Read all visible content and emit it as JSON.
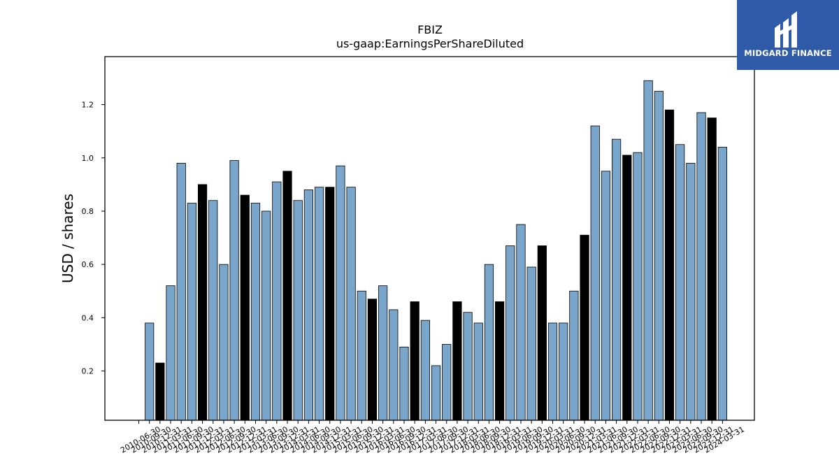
{
  "logo": {
    "text": "MIDGARD FINANCE"
  },
  "chart_data": {
    "type": "bar",
    "title": "FBIZ",
    "subtitle": "us-gaap:EarningsPerShareDiluted",
    "xlabel": "",
    "ylabel": "USD / shares",
    "ylim": [
      0.015,
      1.38
    ],
    "yticks": [
      0.2,
      0.4,
      0.6,
      0.8,
      1.0,
      1.2
    ],
    "grid": false,
    "colors": {
      "default": "#7aa6cc",
      "highlight": "#000000",
      "edge": "#000000"
    },
    "categories": [
      "2010-06-30",
      "2010-09-30",
      "2010-12-31",
      "2011-03-31",
      "2011-06-30",
      "2011-09-30",
      "2011-12-31",
      "2012-03-31",
      "2012-06-30",
      "2012-09-30",
      "2012-12-31",
      "2013-03-31",
      "2013-06-30",
      "2013-09-30",
      "2013-12-31",
      "2014-03-31",
      "2014-06-30",
      "2014-09-30",
      "2014-12-31",
      "2015-03-31",
      "2015-06-30",
      "2015-09-30",
      "2015-12-31",
      "2016-03-31",
      "2016-06-30",
      "2016-09-30",
      "2016-12-31",
      "2017-03-31",
      "2017-06-30",
      "2017-09-30",
      "2017-12-31",
      "2018-03-31",
      "2018-06-30",
      "2018-09-30",
      "2018-12-31",
      "2019-03-31",
      "2019-06-30",
      "2019-09-30",
      "2019-12-31",
      "2020-03-31",
      "2020-06-30",
      "2020-09-30",
      "2020-12-31",
      "2021-03-31",
      "2021-06-30",
      "2021-09-30",
      "2021-12-31",
      "2022-03-31",
      "2022-06-30",
      "2022-09-30",
      "2022-12-31",
      "2023-03-31",
      "2023-06-30",
      "2023-09-30",
      "2023-12-31",
      "2024-03-31"
    ],
    "values": [
      0.0,
      0.38,
      0.23,
      0.52,
      0.98,
      0.83,
      0.9,
      0.84,
      0.6,
      0.99,
      0.86,
      0.83,
      0.8,
      0.91,
      0.95,
      0.84,
      0.88,
      0.89,
      0.89,
      0.97,
      0.89,
      0.5,
      0.47,
      0.52,
      0.43,
      0.29,
      0.46,
      0.39,
      0.22,
      0.3,
      0.46,
      0.42,
      0.38,
      0.6,
      0.46,
      0.67,
      0.75,
      0.59,
      0.67,
      0.38,
      0.38,
      0.5,
      0.71,
      1.12,
      0.95,
      1.07,
      1.01,
      1.02,
      1.29,
      1.25,
      1.18,
      1.05,
      0.98,
      1.17,
      1.15,
      1.04
    ],
    "highlight": [
      false,
      false,
      true,
      false,
      false,
      false,
      true,
      false,
      false,
      false,
      true,
      false,
      false,
      false,
      true,
      false,
      false,
      false,
      true,
      false,
      false,
      false,
      true,
      false,
      false,
      false,
      true,
      false,
      false,
      false,
      true,
      false,
      false,
      false,
      true,
      false,
      false,
      false,
      true,
      false,
      false,
      false,
      true,
      false,
      false,
      false,
      true,
      false,
      false,
      false,
      true,
      false,
      false,
      false,
      true,
      false
    ]
  }
}
